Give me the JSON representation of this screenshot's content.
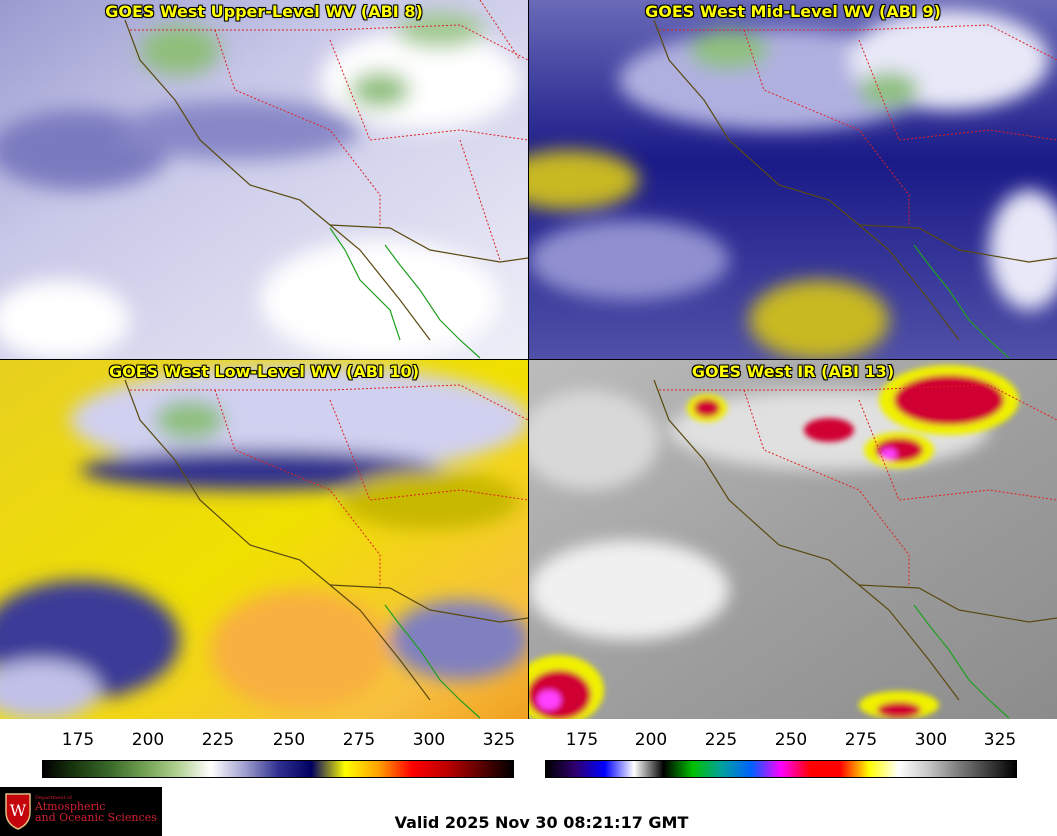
{
  "panels": [
    {
      "title": "GOES West Upper-Level WV (ABI 8)",
      "scheme": "wv_upper"
    },
    {
      "title": "GOES West Mid-Level WV (ABI 9)",
      "scheme": "wv_mid"
    },
    {
      "title": "GOES West Low-Level WV (ABI 10)",
      "scheme": "wv_low"
    },
    {
      "title": "GOES West IR (ABI 13)",
      "scheme": "ir"
    }
  ],
  "colorbars": {
    "wv": {
      "ticks": [
        "175",
        "200",
        "225",
        "250",
        "275",
        "300",
        "325"
      ],
      "stops": [
        "#000000",
        "#1a3a10",
        "#3a6a2a",
        "#70a050",
        "#b0d090",
        "#ffffff",
        "#a0a0d0",
        "#303090",
        "#000060",
        "#ffff00",
        "#ffa000",
        "#ff0000",
        "#c00000",
        "#600000",
        "#000000"
      ]
    },
    "ir": {
      "ticks": [
        "175",
        "200",
        "225",
        "250",
        "275",
        "300",
        "325"
      ],
      "stops": [
        "#000000",
        "#300070",
        "#0000ff",
        "#ffffff",
        "#000000",
        "#00c000",
        "#00a0a0",
        "#0060ff",
        "#ff00ff",
        "#ff0000",
        "#ff0000",
        "#ffff00",
        "#ffffff",
        "#c8c8c8",
        "#808080",
        "#404040",
        "#000000"
      ]
    }
  },
  "logo": {
    "line1": "Department of",
    "line2": "Atmospheric",
    "line3": "and Oceanic Sciences",
    "seal_letter": "W"
  },
  "valid_text": "Valid 2025 Nov 30 08:21:17 GMT"
}
